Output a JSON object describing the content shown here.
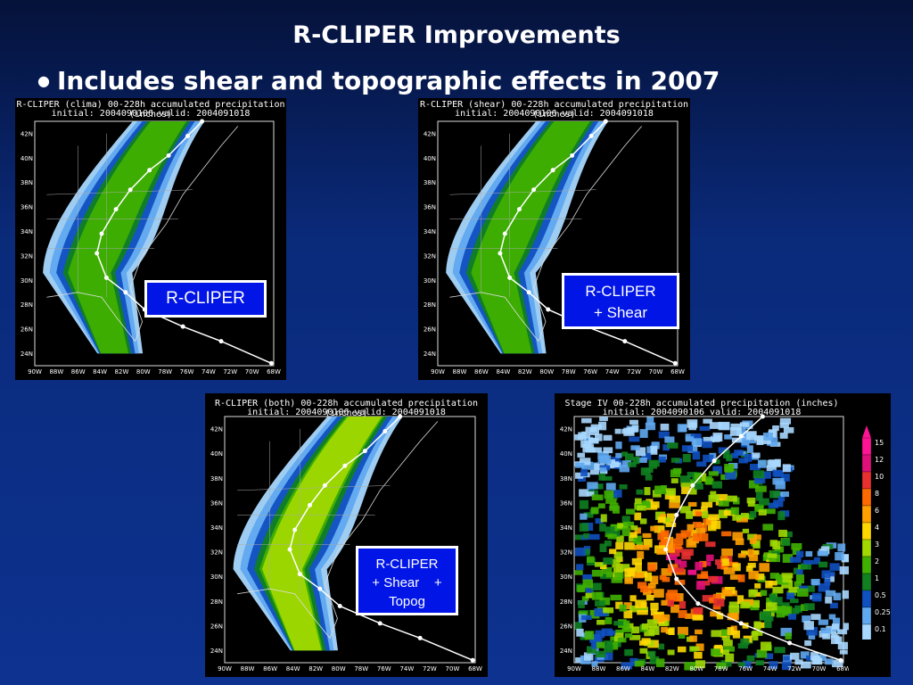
{
  "slide": {
    "title": "R-CLIPER Improvements",
    "bullet": "Includes shear and topographic effects in 2007"
  },
  "panels": [
    {
      "header1": "R-CLIPER (clima) 00-228h accumulated precipitation (inches)",
      "header2": "initial: 2004090106    valid: 2004091018",
      "label_lines": [
        "R-CLIPER"
      ]
    },
    {
      "header1": "R-CLIPER (shear) 00-228h accumulated precipitation (inches)",
      "header2": "initial: 2004090106    valid: 2004091018",
      "label_lines": [
        "R-CLIPER",
        "+ Shear"
      ]
    },
    {
      "header1": "R-CLIPER (both) 00-228h accumulated precipitation (inches)",
      "header2": "initial: 2004090106    valid: 2004091018",
      "label_lines": [
        "R-CLIPER",
        "+ Shear    +",
        "Topog"
      ]
    },
    {
      "header1": "Stage IV 00-228h accumulated precipitation (inches)",
      "header2": "initial: 2004090106    valid: 2004091018",
      "label_lines": []
    }
  ],
  "lat_ticks": [
    "42N",
    "40N",
    "38N",
    "36N",
    "34N",
    "32N",
    "30N",
    "28N",
    "26N",
    "24N"
  ],
  "lon_ticks": [
    "90W",
    "88W",
    "86W",
    "84W",
    "82W",
    "80W",
    "78W",
    "76W",
    "74W",
    "72W",
    "70W",
    "68W"
  ],
  "colorbar": {
    "values": [
      "15",
      "12",
      "10",
      "8",
      "6",
      "4",
      "3",
      "2",
      "1",
      "0.5",
      "0.25",
      "0.1"
    ],
    "colors": [
      "#ff1493",
      "#e0107a",
      "#e83030",
      "#ff6a00",
      "#ffa000",
      "#ffd800",
      "#a0d800",
      "#40b000",
      "#108020",
      "#1050c0",
      "#60a8f0",
      "#a8d8ff"
    ]
  }
}
